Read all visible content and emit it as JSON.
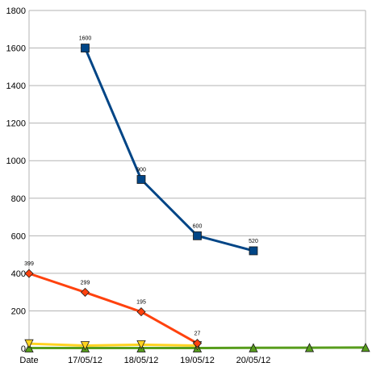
{
  "chart_data": {
    "type": "line",
    "title": "",
    "xlabel": "",
    "ylabel": "",
    "categories": [
      "Date",
      "17/05/12",
      "18/05/12",
      "19/05/12",
      "20/05/12",
      "",
      ""
    ],
    "ylim": [
      0,
      1800
    ],
    "yticks": [
      0,
      200,
      400,
      600,
      800,
      1000,
      1200,
      1400,
      1600,
      1800
    ],
    "grid": true,
    "legend": "none",
    "series": [
      {
        "color": "#004586",
        "marker": "square",
        "values": [
          null,
          1600,
          900,
          600,
          520,
          null,
          null
        ],
        "labels": [
          "",
          "1600",
          "900",
          "600",
          "520",
          "",
          ""
        ]
      },
      {
        "color": "#ff420e",
        "marker": "diamond",
        "values": [
          399,
          299,
          195,
          27,
          null,
          null,
          null
        ],
        "labels": [
          "399",
          "299",
          "195",
          "27",
          "",
          "",
          ""
        ]
      },
      {
        "color": "#ffd320",
        "marker": "triangle-down",
        "values": [
          25,
          15,
          20,
          15,
          null,
          null,
          null
        ],
        "labels": [
          "",
          "",
          "",
          "",
          "",
          "",
          ""
        ]
      },
      {
        "color": "#579d1c",
        "marker": "triangle-up",
        "values": [
          2,
          2,
          2,
          2,
          3,
          4,
          5
        ],
        "labels": [
          "",
          "",
          "",
          "",
          "",
          "",
          ""
        ]
      }
    ]
  }
}
